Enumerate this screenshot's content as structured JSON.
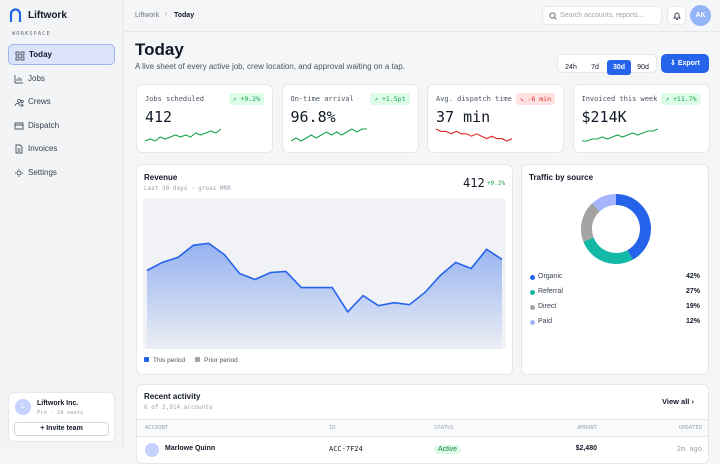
{
  "brand": "Liftwork",
  "sidebar": {
    "section": "WORKSPACE",
    "nav": [
      "Today",
      "Jobs",
      "Crews",
      "Dispatch",
      "Invoices",
      "Settings"
    ],
    "org": {
      "initial": "L",
      "name": "Liftwork Inc.",
      "plan": "Pro · 24 seats",
      "button": "Invite team"
    }
  },
  "topbar": {
    "crumbs": [
      "Liftwork",
      "Today"
    ],
    "search": "Search accounts, reports...",
    "avatar": "AK"
  },
  "header": {
    "title": "Today",
    "subtitle": "A live sheet of every active job, crew location, and approval waiting on a tap.",
    "ranges": [
      "24h",
      "7d",
      "30d",
      "90d"
    ],
    "export": "Export"
  },
  "kpis": [
    {
      "label": "Jobs scheduled",
      "value": "412",
      "delta": "+9.2%",
      "trend": "up",
      "color": "#16a34a",
      "spark": [
        3,
        4,
        3,
        5,
        4,
        5,
        6,
        5,
        6,
        5,
        7,
        6,
        7,
        8,
        7,
        9
      ]
    },
    {
      "label": "On-time arrival",
      "value": "96.8%",
      "delta": "+1.5pt",
      "trend": "up",
      "color": "#16a34a",
      "spark": [
        4,
        5,
        4,
        5,
        6,
        5,
        6,
        7,
        6,
        7,
        6,
        7,
        8,
        7,
        8,
        8
      ]
    },
    {
      "label": "Avg. dispatch time",
      "value": "37 min",
      "delta": "-6 min",
      "trend": "down",
      "color": "#dc2626",
      "spark": [
        8,
        7,
        7,
        6,
        7,
        6,
        6,
        5,
        6,
        5,
        4,
        5,
        4,
        4,
        3,
        4
      ]
    },
    {
      "label": "Invoiced this week",
      "value": "$214K",
      "delta": "+11.7%",
      "trend": "up",
      "color": "#16a34a",
      "spark": [
        3,
        3,
        4,
        4,
        5,
        4,
        5,
        6,
        5,
        6,
        7,
        6,
        7,
        8,
        8,
        9
      ]
    }
  ],
  "revenue": {
    "title": "Revenue",
    "subtitle": "Last 30 days · gross MRR",
    "value": "412",
    "delta": "+9.2%",
    "ylim": [
      0,
      150
    ],
    "series": [
      {
        "name": "This period",
        "color": "#2563eb",
        "values": [
          78,
          86,
          91,
          103,
          105,
          94,
          75,
          69,
          76,
          77,
          61,
          61,
          61,
          37,
          53,
          43,
          46,
          44,
          56,
          73,
          86,
          80,
          99,
          89
        ]
      }
    ],
    "legend": [
      {
        "name": "This period",
        "color": "#2563eb"
      },
      {
        "name": "Prior period",
        "color": "#a3a3a3"
      }
    ]
  },
  "traffic": {
    "title": "Traffic by source",
    "sources": [
      {
        "name": "Organic",
        "value": 42,
        "value_label": "42%",
        "color": "#2563eb"
      },
      {
        "name": "Referral",
        "value": 27,
        "value_label": "27%",
        "color": "#14b8a6"
      },
      {
        "name": "Direct",
        "value": 19,
        "value_label": "19%",
        "color": "#a3a3a3"
      },
      {
        "name": "Paid",
        "value": 12,
        "value_label": "12%",
        "color": "#a5b4fc"
      }
    ]
  },
  "activity": {
    "title": "Recent activity",
    "subtitle": "6 of 3,914 accounts",
    "link": "View all",
    "columns": [
      "ACCOUNT",
      "ID",
      "STATUS",
      "AMOUNT",
      "UPDATED"
    ],
    "rows": [
      [
        "Marlowe Quinn",
        "ACC-7F24",
        "Active",
        "$2,480",
        "2m ago"
      ]
    ]
  }
}
